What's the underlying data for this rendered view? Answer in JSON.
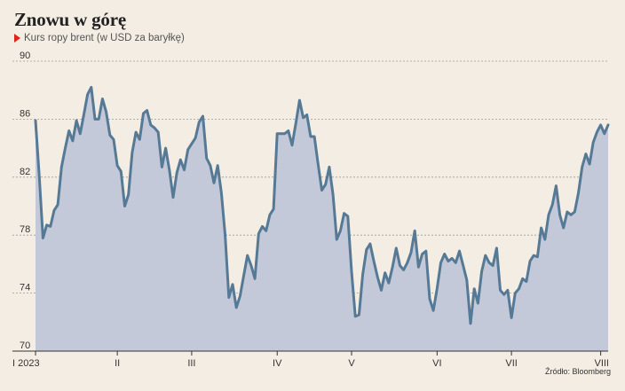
{
  "header": {
    "title": "Znowu w górę",
    "subtitle": "Kurs ropy brent (w USD za baryłkę)"
  },
  "footer": {
    "source": "Źródło: Bloomberg"
  },
  "colors": {
    "line": "#567a96",
    "fill": "#c3c9d8",
    "background": "#f3ede4",
    "marker": "#e0241b"
  },
  "chart_data": {
    "type": "area",
    "title": "Znowu w górę",
    "subtitle": "Kurs ropy brent (w USD za baryłkę)",
    "ylim": [
      70,
      90
    ],
    "yticks": [
      70,
      74,
      78,
      82,
      86,
      90
    ],
    "xlim": [
      0,
      154
    ],
    "xticks": [
      {
        "x": 0,
        "label": "I 2023"
      },
      {
        "x": 22,
        "label": "II"
      },
      {
        "x": 42,
        "label": "III"
      },
      {
        "x": 65,
        "label": "IV"
      },
      {
        "x": 85,
        "label": "V"
      },
      {
        "x": 108,
        "label": "VI"
      },
      {
        "x": 128,
        "label": "VII"
      },
      {
        "x": 152,
        "label": "VIII"
      }
    ],
    "grid": true,
    "series": [
      {
        "values": [
          85.9,
          82.1,
          77.8,
          78.7,
          78.6,
          79.7,
          80.1,
          82.7,
          84.0,
          85.2,
          84.5,
          85.9,
          85.0,
          86.3,
          87.7,
          88.2,
          86.0,
          86.0,
          87.4,
          86.5,
          84.9,
          84.6,
          82.8,
          82.4,
          80.0,
          80.8,
          83.7,
          85.1,
          84.6,
          86.4,
          86.6,
          85.6,
          85.4,
          85.1,
          82.7,
          84.0,
          82.5,
          80.6,
          82.3,
          83.2,
          82.5,
          83.9,
          84.3,
          84.7,
          85.8,
          86.2,
          83.3,
          82.8,
          81.6,
          82.8,
          80.9,
          78.0,
          73.7,
          74.6,
          73.0,
          73.8,
          75.2,
          76.6,
          75.9,
          75.0,
          78.1,
          78.6,
          78.3,
          79.4,
          79.8,
          85.0,
          85.0,
          85.0,
          85.2,
          84.2,
          85.7,
          87.3,
          86.1,
          86.3,
          84.8,
          84.8,
          82.9,
          81.1,
          81.5,
          82.7,
          80.8,
          77.7,
          78.3,
          79.5,
          79.3,
          75.5,
          72.4,
          72.5,
          75.3,
          77.0,
          77.4,
          76.2,
          75.1,
          74.2,
          75.4,
          74.7,
          75.8,
          77.1,
          75.9,
          75.6,
          76.1,
          76.8,
          78.3,
          75.8,
          76.7,
          76.9,
          73.6,
          72.8,
          74.3,
          76.1,
          76.7,
          76.2,
          76.4,
          76.1,
          76.9,
          75.9,
          74.9,
          71.9,
          74.3,
          73.3,
          75.5,
          76.6,
          76.1,
          75.9,
          77.1,
          74.2,
          73.9,
          74.2,
          72.3,
          74.0,
          74.3,
          75.0,
          74.8,
          76.2,
          76.6,
          76.5,
          78.5,
          77.7,
          79.4,
          80.1,
          81.4,
          79.4,
          78.5,
          79.6,
          79.4,
          79.6,
          80.9,
          82.7,
          83.6,
          82.9,
          84.4,
          85.1,
          85.6,
          85.0,
          85.6
        ]
      }
    ]
  }
}
